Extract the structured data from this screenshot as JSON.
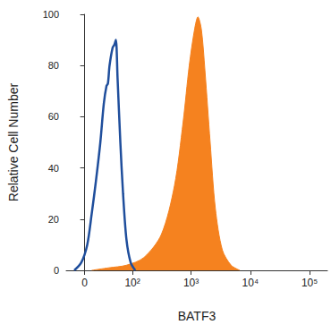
{
  "chart_data": {
    "type": "line",
    "x_label": "BATF3",
    "y_label": "Relative Cell Number",
    "xlim": [
      -25,
      200000
    ],
    "xticks": [
      0,
      {
        "value": 100,
        "label": "10²"
      },
      {
        "value": 1000,
        "label": "10³"
      },
      {
        "value": 10000,
        "label": "10⁴"
      },
      {
        "value": 100000,
        "label": "10⁵"
      }
    ],
    "ylim": [
      0,
      100
    ],
    "yticks": [
      0,
      20,
      40,
      60,
      80,
      100
    ],
    "grid": false,
    "series": [
      {
        "type": "area",
        "color": "#f5821f",
        "x": [
          8.8,
          35,
          78,
          158,
          314,
          523,
          734,
          931,
          1142,
          1303,
          1494,
          1714,
          2099,
          2573,
          3365,
          4736,
          6650
        ],
        "values": [
          0,
          1,
          2,
          5,
          14,
          33,
          58,
          80,
          94,
          99,
          94,
          78,
          50,
          24,
          8,
          2,
          0
        ]
      },
      {
        "type": "line",
        "color": "#1f4e9c",
        "x": [
          -13.3,
          -4.3,
          3.2,
          8.8,
          14.5,
          20.7,
          26,
          30.5,
          33,
          36,
          42,
          45.5,
          49,
          53,
          60,
          67.5,
          78,
          93,
          112
        ],
        "values": [
          0,
          3,
          10,
          22,
          35,
          50,
          65,
          72,
          73,
          80,
          87,
          88,
          90,
          75,
          50,
          30,
          12,
          3,
          0
        ]
      }
    ]
  }
}
